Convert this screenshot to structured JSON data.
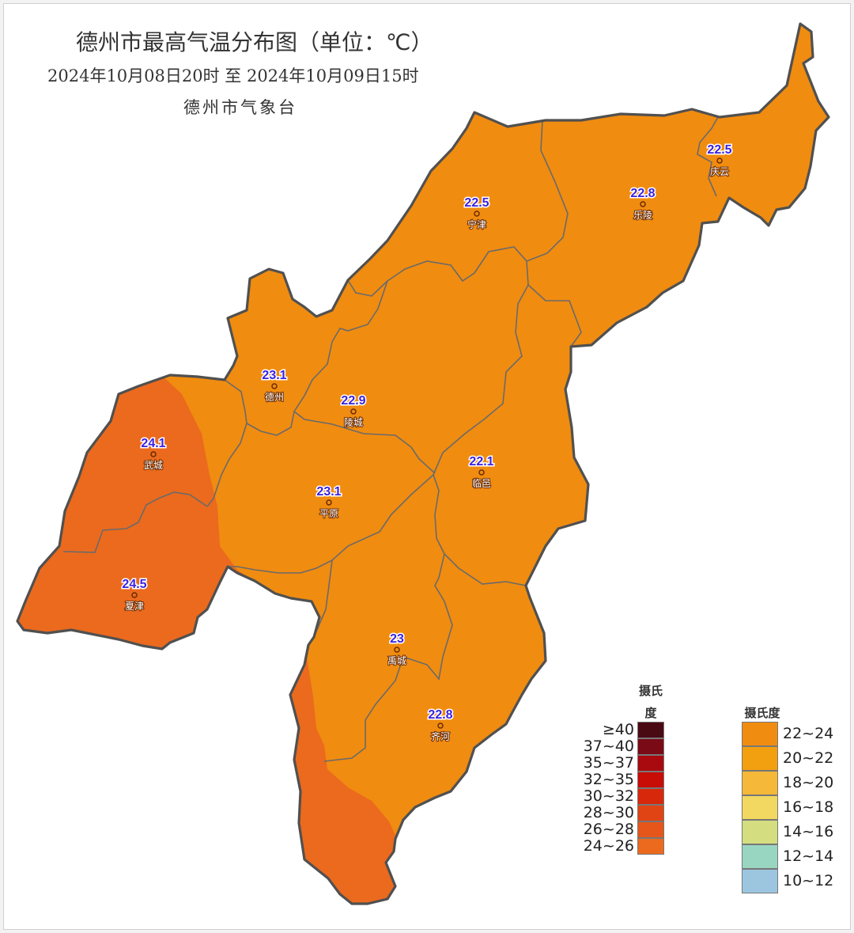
{
  "header": {
    "title": "德州市最高气温分布图（单位：℃）",
    "subtitle": "2024年10月08日20时  至  2024年10月09日15时",
    "source": "德州市气象台"
  },
  "colors": {
    "zone_22_24": "#f08c10",
    "zone_24_26": "#eb6a1e",
    "boundary": "#505050",
    "value_text": "#3b22e0"
  },
  "stations": [
    {
      "name": "庆云",
      "value": "22.5"
    },
    {
      "name": "宁津",
      "value": "22.5"
    },
    {
      "name": "乐陵",
      "value": "22.8"
    },
    {
      "name": "德州",
      "value": "23.1"
    },
    {
      "name": "陵城",
      "value": "22.9"
    },
    {
      "name": "武城",
      "value": "24.1"
    },
    {
      "name": "临邑",
      "value": "22.1"
    },
    {
      "name": "平原",
      "value": "23.1"
    },
    {
      "name": "夏津",
      "value": "24.5"
    },
    {
      "name": "禹城",
      "value": "23"
    },
    {
      "name": "齐河",
      "value": "22.8"
    }
  ],
  "legend_hot": {
    "title_line1": "摄氏",
    "title_line2": "度",
    "items": [
      {
        "label": "≥40",
        "color": "#4a0a14"
      },
      {
        "label": "37~40",
        "color": "#7a0a16"
      },
      {
        "label": "35~37",
        "color": "#a80a10"
      },
      {
        "label": "32~35",
        "color": "#c80c06"
      },
      {
        "label": "30~32",
        "color": "#d8280c"
      },
      {
        "label": "28~30",
        "color": "#e04414"
      },
      {
        "label": "26~28",
        "color": "#e6561a"
      },
      {
        "label": "24~26",
        "color": "#eb6a1e"
      }
    ]
  },
  "legend_cool": {
    "title": "摄氏度",
    "items": [
      {
        "label": "22~24",
        "color": "#f08c10"
      },
      {
        "label": "20~22",
        "color": "#f2a010"
      },
      {
        "label": "18~20",
        "color": "#f5b838"
      },
      {
        "label": "16~18",
        "color": "#f2d860"
      },
      {
        "label": "14~16",
        "color": "#d4de80"
      },
      {
        "label": "12~14",
        "color": "#98d6c2"
      },
      {
        "label": "10~12",
        "color": "#9cc6e0"
      }
    ]
  }
}
